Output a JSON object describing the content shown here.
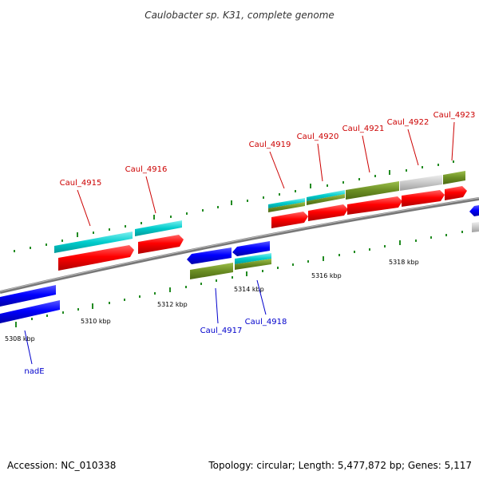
{
  "title": "Caulobacter sp. K31, complete genome",
  "footer": {
    "accession": "Accession: NC_010338",
    "summary": "Topology: circular; Length: 5,477,872 bp; Genes: 5,117"
  },
  "colors": {
    "backbone": "#8a8a8a",
    "cds_forward": "#ff0000",
    "cds_reverse": "#0000ff",
    "cog_olive": "#6b8e23",
    "cog_cyan": "#00cccc",
    "cog_grey": "#c8c8c8",
    "label_forward": "#cc0000",
    "label_reverse": "#0000cc",
    "tick": "#228b22"
  },
  "kbp_labels": [
    "5308 kbp",
    "5310 kbp",
    "5312 kbp",
    "5314 kbp",
    "5316 kbp",
    "5318 kbp"
  ],
  "gene_labels": [
    {
      "id": "lab-4915",
      "text": "Caul_4915"
    },
    {
      "id": "lab-4916",
      "text": "Caul_4916"
    },
    {
      "id": "lab-4917",
      "text": "Caul_4917"
    },
    {
      "id": "lab-4918",
      "text": "Caul_4918"
    },
    {
      "id": "lab-4919",
      "text": "Caul_4919"
    },
    {
      "id": "lab-4920",
      "text": "Caul_4920"
    },
    {
      "id": "lab-4921",
      "text": "Caul_4921"
    },
    {
      "id": "lab-4922",
      "text": "Caul_4922"
    },
    {
      "id": "lab-4923",
      "text": "Caul_4923"
    },
    {
      "id": "lab-nadE",
      "text": "nadE"
    }
  ]
}
